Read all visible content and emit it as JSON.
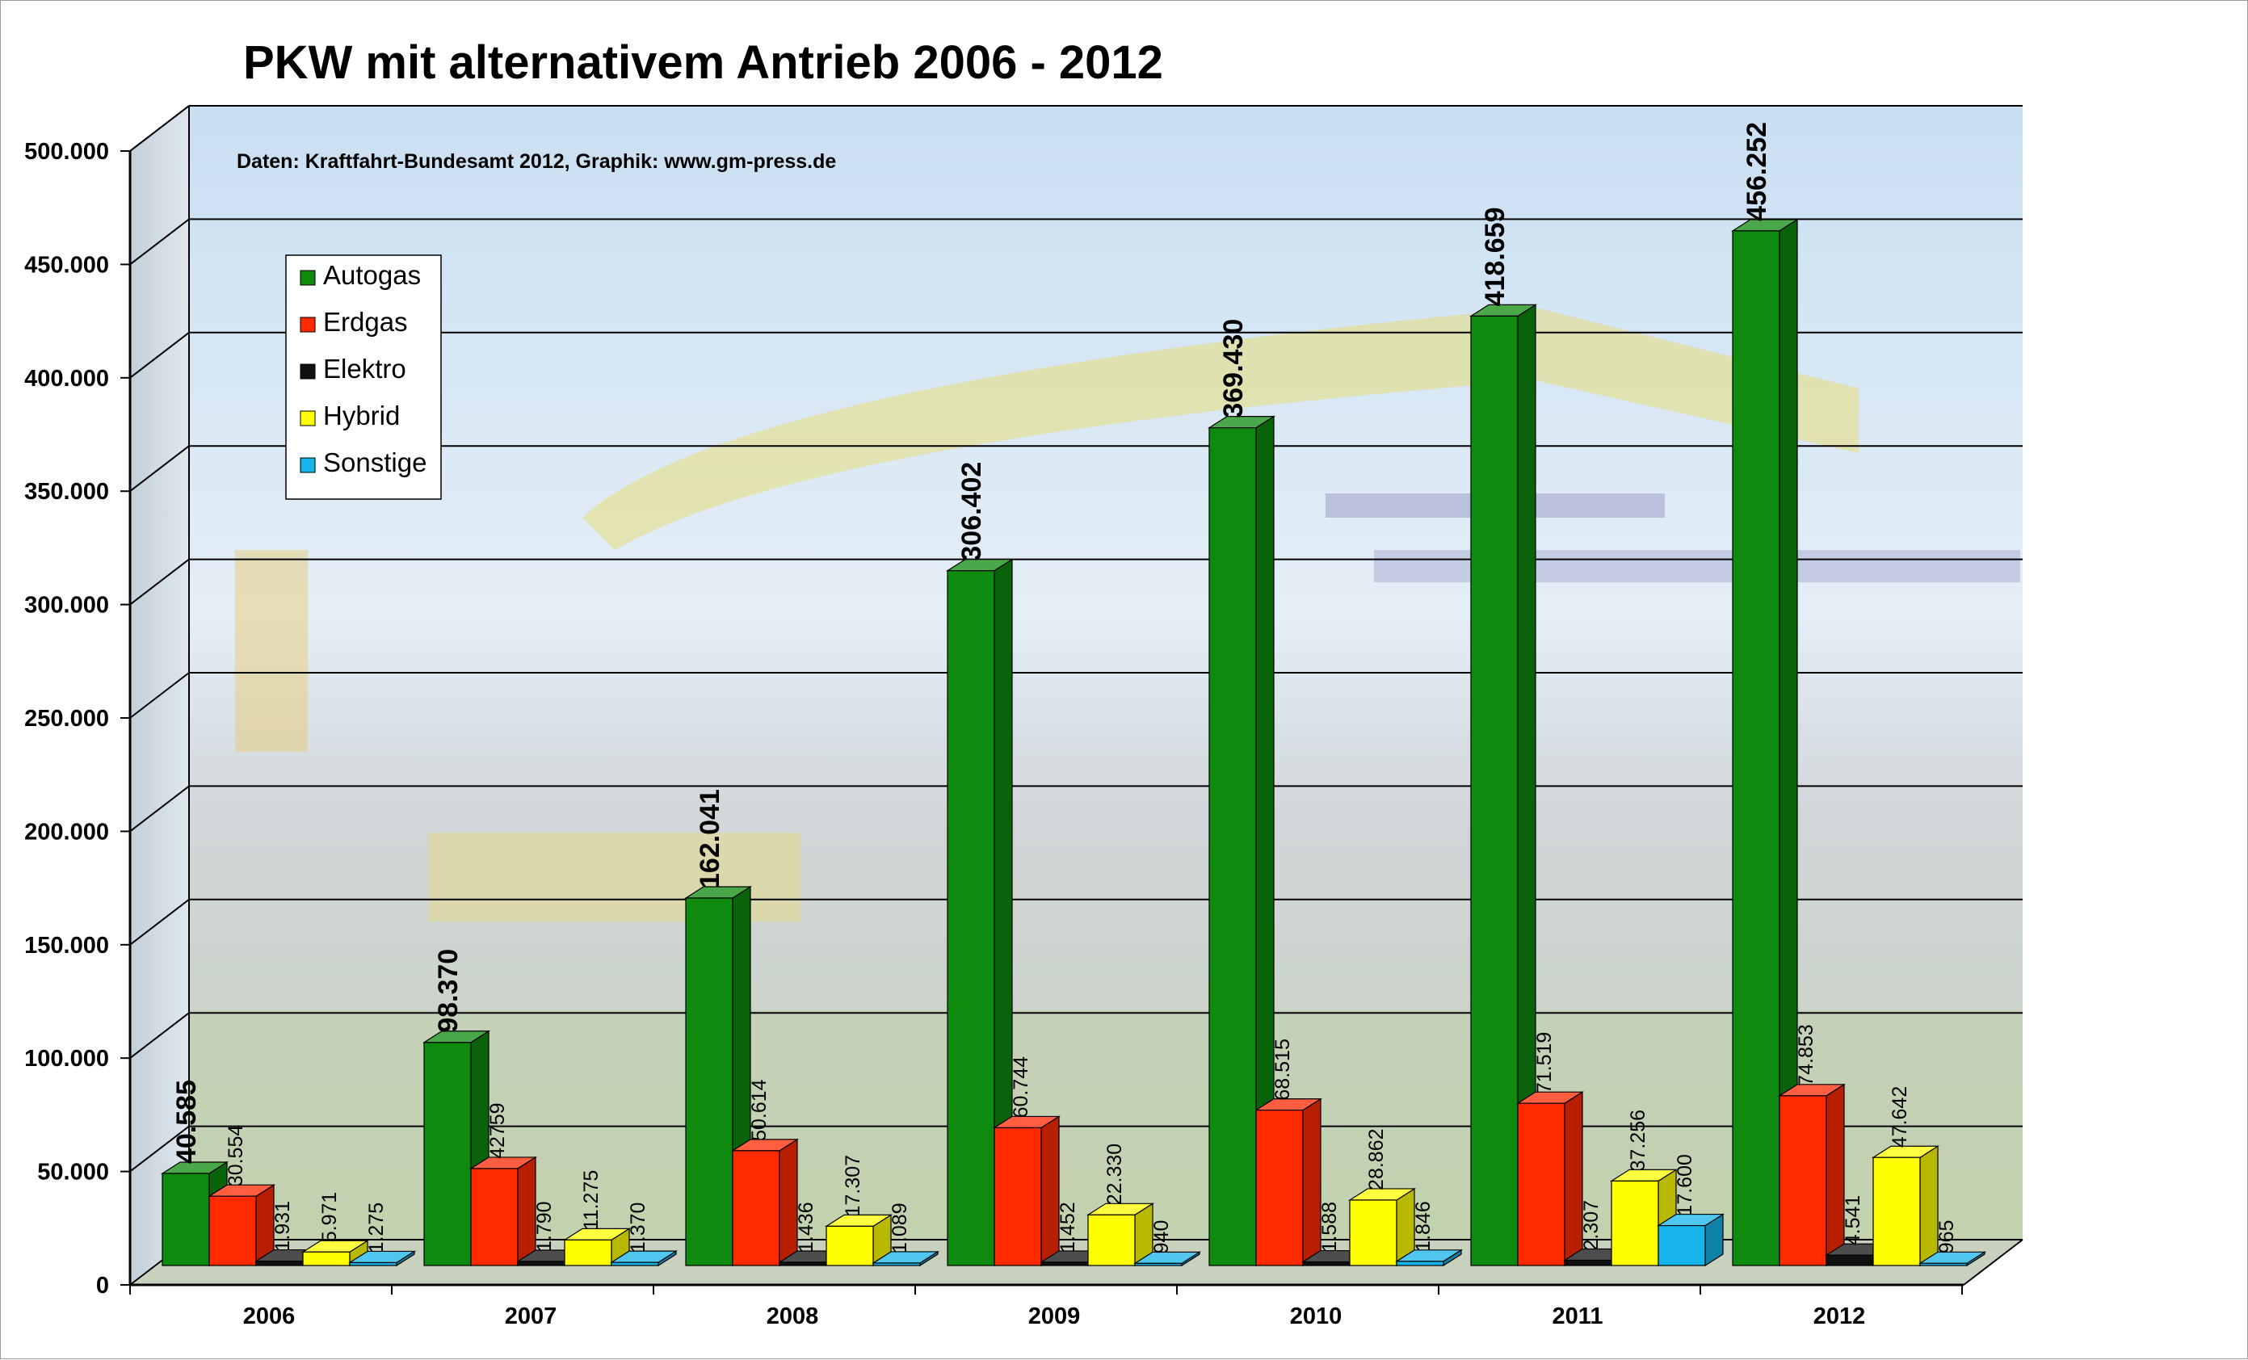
{
  "chart_data": {
    "type": "bar",
    "title": "PKW mit alternativem Antrieb 2006 - 2012",
    "subtitle": "Daten: Kraftfahrt-Bundesamt 2012, Graphik: www.gm-press.de",
    "categories": [
      "2006",
      "2007",
      "2008",
      "2009",
      "2010",
      "2011",
      "2012"
    ],
    "ylim": [
      0,
      500000
    ],
    "yticks": [
      "0",
      "50.000",
      "100.000",
      "150.000",
      "200.000",
      "250.000",
      "300.000",
      "350.000",
      "400.000",
      "450.000",
      "500.000"
    ],
    "grid": true,
    "legend_position": "upper-left",
    "series": [
      {
        "name": "Autogas",
        "color": "#0e8a0e",
        "values": [
          40585,
          98370,
          162041,
          306402,
          369430,
          418659,
          456252
        ],
        "labels": [
          "40.585",
          "98.370",
          "162.041",
          "306.402",
          "369.430",
          "418.659",
          "456.252"
        ]
      },
      {
        "name": "Erdgas",
        "color": "#ff2a00",
        "values": [
          30554,
          42759,
          50614,
          60744,
          68515,
          71519,
          74853
        ],
        "labels": [
          "30.554",
          "42759",
          "50.614",
          "60.744",
          "68.515",
          "71.519",
          "74.853"
        ]
      },
      {
        "name": "Elektro",
        "color": "#111111",
        "values": [
          1931,
          1790,
          1436,
          1452,
          1588,
          2307,
          4541
        ],
        "labels": [
          "1.931",
          "1.790",
          "1.436",
          "1.452",
          "1.588",
          "2.307",
          "4.541"
        ]
      },
      {
        "name": "Hybrid",
        "color": "#ffff00",
        "values": [
          5971,
          11275,
          17307,
          22330,
          28862,
          37256,
          47642
        ],
        "labels": [
          "5.971",
          "11.275",
          "17.307",
          "22.330",
          "28.862",
          "37.256",
          "47.642"
        ]
      },
      {
        "name": "Sonstige",
        "color": "#16b4ea",
        "values": [
          1275,
          1370,
          1089,
          940,
          1846,
          17600,
          965
        ],
        "labels": [
          "1.275",
          "1.370",
          "1.089",
          "940",
          "1.846",
          "17.600",
          "965"
        ]
      }
    ]
  }
}
